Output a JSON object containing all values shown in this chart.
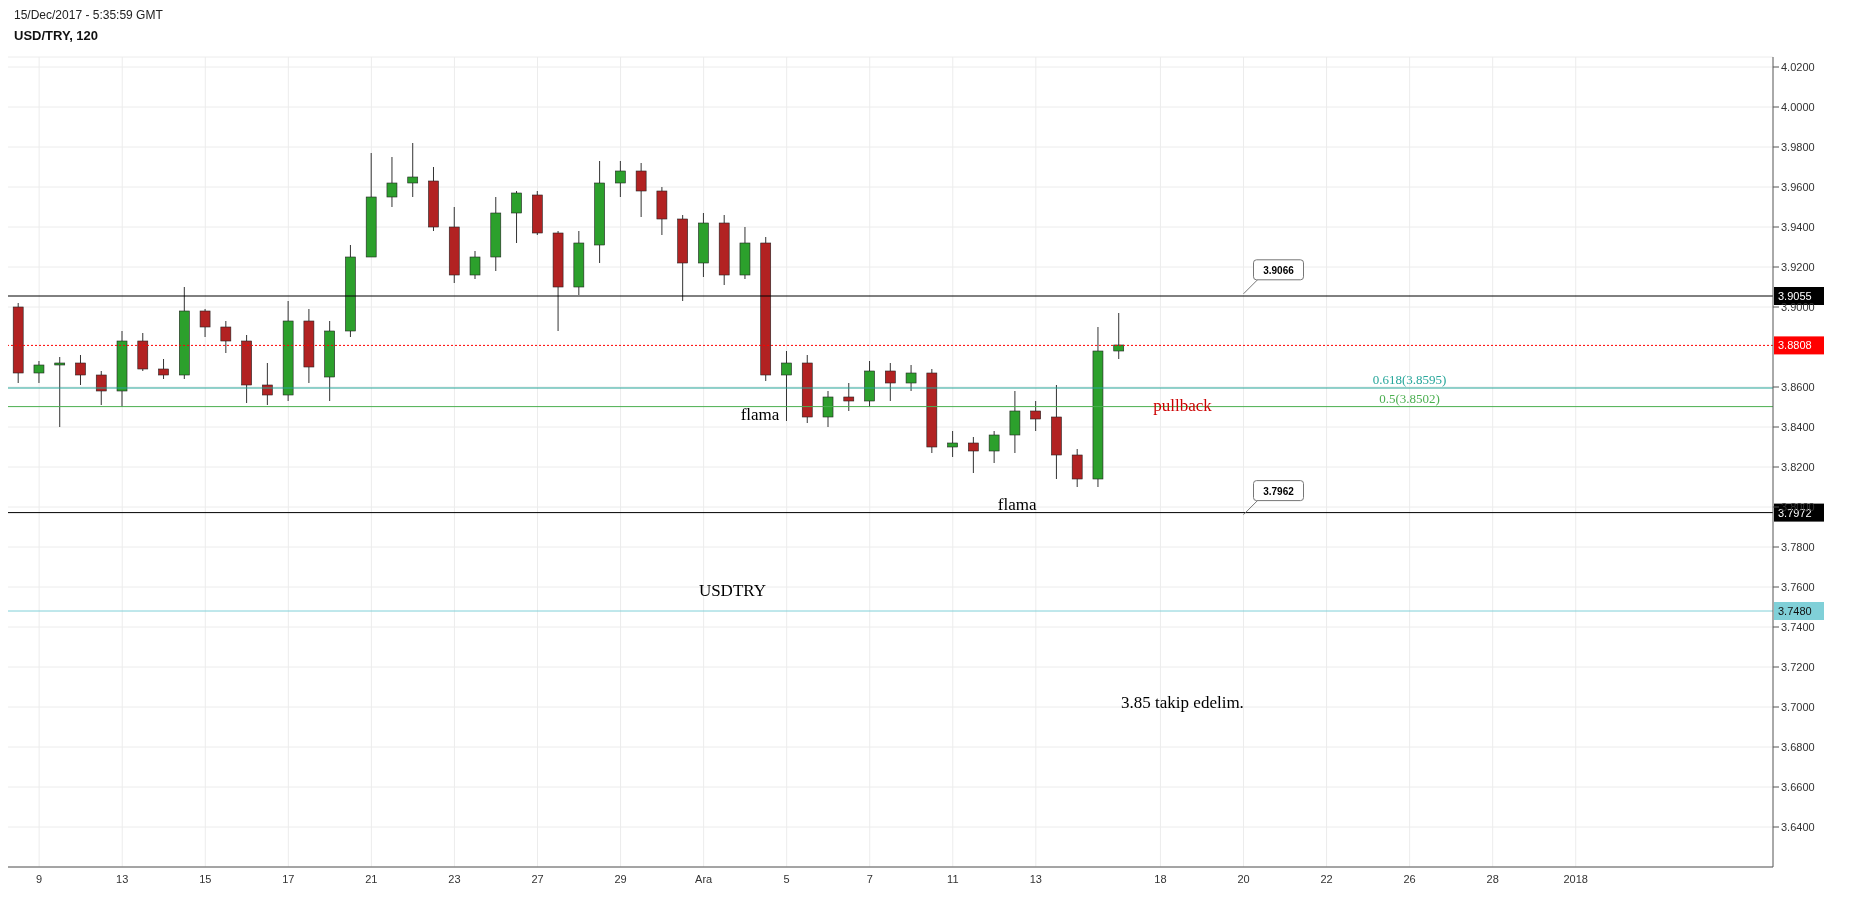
{
  "chart_data": {
    "type": "candlestick",
    "title": "USD/TRY, 120",
    "subtitle": "15/Dec/2017 - 5:35:59 GMT",
    "categories": [
      null,
      "9",
      null,
      null,
      null,
      "13",
      null,
      null,
      null,
      "15",
      null,
      null,
      null,
      "17",
      null,
      null,
      null,
      "21",
      null,
      null,
      null,
      "23",
      null,
      null,
      null,
      "27",
      null,
      null,
      null,
      "29",
      null,
      null,
      null,
      "Ara",
      null,
      null,
      null,
      "5",
      null,
      null,
      null,
      "7",
      null,
      null,
      null,
      "11",
      null,
      null,
      null,
      "13",
      null,
      null,
      null,
      null,
      null,
      "18",
      null,
      null,
      null,
      "20",
      null,
      null,
      null,
      "22",
      null,
      null,
      null,
      "26",
      null,
      null,
      null,
      "28",
      null,
      null,
      null,
      "2018",
      null,
      null,
      null,
      null,
      null,
      null,
      null,
      null,
      null
    ],
    "ohlc": [
      [
        3.9,
        3.902,
        3.862,
        3.867
      ],
      [
        3.867,
        3.873,
        3.862,
        3.871
      ],
      [
        3.871,
        3.875,
        3.84,
        3.872
      ],
      [
        3.872,
        3.876,
        3.861,
        3.866
      ],
      [
        3.866,
        3.868,
        3.851,
        3.858
      ],
      [
        3.858,
        3.888,
        3.85,
        3.883
      ],
      [
        3.883,
        3.887,
        3.868,
        3.869
      ],
      [
        3.869,
        3.874,
        3.864,
        3.866
      ],
      [
        3.866,
        3.91,
        3.864,
        3.898
      ],
      [
        3.898,
        3.899,
        3.885,
        3.89
      ],
      [
        3.89,
        3.893,
        3.877,
        3.883
      ],
      [
        3.883,
        3.886,
        3.852,
        3.861
      ],
      [
        3.861,
        3.872,
        3.851,
        3.856
      ],
      [
        3.856,
        3.903,
        3.853,
        3.893
      ],
      [
        3.893,
        3.899,
        3.862,
        3.87
      ],
      [
        3.865,
        3.893,
        3.853,
        3.888
      ],
      [
        3.888,
        3.931,
        3.885,
        3.925
      ],
      [
        3.925,
        3.977,
        3.925,
        3.955
      ],
      [
        3.955,
        3.975,
        3.95,
        3.962
      ],
      [
        3.962,
        3.982,
        3.955,
        3.965
      ],
      [
        3.963,
        3.97,
        3.938,
        3.94
      ],
      [
        3.94,
        3.95,
        3.912,
        3.916
      ],
      [
        3.916,
        3.928,
        3.914,
        3.925
      ],
      [
        3.925,
        3.955,
        3.918,
        3.947
      ],
      [
        3.947,
        3.958,
        3.932,
        3.957
      ],
      [
        3.956,
        3.958,
        3.936,
        3.937
      ],
      [
        3.937,
        3.938,
        3.888,
        3.91
      ],
      [
        3.91,
        3.938,
        3.906,
        3.932
      ],
      [
        3.931,
        3.973,
        3.922,
        3.962
      ],
      [
        3.962,
        3.973,
        3.955,
        3.968
      ],
      [
        3.968,
        3.972,
        3.945,
        3.958
      ],
      [
        3.958,
        3.96,
        3.936,
        3.944
      ],
      [
        3.944,
        3.946,
        3.903,
        3.922
      ],
      [
        3.922,
        3.947,
        3.915,
        3.942
      ],
      [
        3.942,
        3.946,
        3.911,
        3.916
      ],
      [
        3.916,
        3.94,
        3.914,
        3.932
      ],
      [
        3.932,
        3.935,
        3.863,
        3.866
      ],
      [
        3.866,
        3.878,
        3.843,
        3.872
      ],
      [
        3.872,
        3.876,
        3.842,
        3.845
      ],
      [
        3.845,
        3.858,
        3.84,
        3.855
      ],
      [
        3.855,
        3.862,
        3.848,
        3.853
      ],
      [
        3.853,
        3.873,
        3.85,
        3.868
      ],
      [
        3.868,
        3.872,
        3.853,
        3.862
      ],
      [
        3.862,
        3.871,
        3.858,
        3.867
      ],
      [
        3.867,
        3.869,
        3.827,
        3.83
      ],
      [
        3.83,
        3.838,
        3.825,
        3.832
      ],
      [
        3.832,
        3.835,
        3.817,
        3.828
      ],
      [
        3.828,
        3.838,
        3.822,
        3.836
      ],
      [
        3.836,
        3.858,
        3.827,
        3.848
      ],
      [
        3.848,
        3.853,
        3.838,
        3.844
      ],
      [
        3.845,
        3.861,
        3.814,
        3.826
      ],
      [
        3.826,
        3.829,
        3.81,
        3.814
      ],
      [
        3.814,
        3.89,
        3.81,
        3.878
      ],
      [
        3.878,
        3.897,
        3.874,
        3.881
      ],
      null,
      null,
      null,
      null,
      null,
      null,
      null,
      null,
      null,
      null,
      null,
      null,
      null,
      null,
      null,
      null,
      null,
      null,
      null,
      null,
      null,
      null,
      null,
      null,
      null,
      null,
      null,
      null,
      null,
      null,
      null
    ],
    "colors": [
      "#b22222",
      "#2ca02c",
      "#2ca02c",
      "#b22222",
      "#b22222",
      "#2ca02c",
      "#b22222",
      "#b22222",
      "#2ca02c",
      "#b22222",
      "#b22222",
      "#b22222",
      "#b22222",
      "#2ca02c",
      "#b22222",
      "#2ca02c",
      "#2ca02c",
      "#2ca02c",
      "#2ca02c",
      "#2ca02c",
      "#b22222",
      "#b22222",
      "#2ca02c",
      "#2ca02c",
      "#2ca02c",
      "#b22222",
      "#b22222",
      "#2ca02c",
      "#2ca02c",
      "#2ca02c",
      "#b22222",
      "#b22222",
      "#b22222",
      "#2ca02c",
      "#b22222",
      "#2ca02c",
      "#b22222",
      "#2ca02c",
      "#b22222",
      "#2ca02c",
      "#b22222",
      "#2ca02c",
      "#b22222",
      "#2ca02c",
      "#b22222",
      "#2ca02c",
      "#b22222",
      "#2ca02c",
      "#2ca02c",
      "#b22222",
      "#b22222",
      "#b22222",
      "#2ca02c",
      "#2ca02c",
      null,
      null,
      null,
      null,
      null,
      null,
      null,
      null,
      null,
      null,
      null,
      null,
      null,
      null,
      null,
      null,
      null,
      null,
      null,
      null,
      null,
      null,
      null,
      null,
      null,
      null,
      null,
      null,
      null,
      null,
      null
    ],
    "ylim": [
      3.62,
      4.025
    ],
    "yticks": [
      {
        "value": 3.64,
        "label": "3.6400"
      },
      {
        "value": 3.66,
        "label": "3.6600"
      },
      {
        "value": 3.68,
        "label": "3.6800"
      },
      {
        "value": 3.7,
        "label": "3.7000"
      },
      {
        "value": 3.72,
        "label": "3.7200"
      },
      {
        "value": 3.74,
        "label": "3.7400"
      },
      {
        "value": 3.76,
        "label": "3.7600"
      },
      {
        "value": 3.78,
        "label": "3.7800"
      },
      {
        "value": 3.8,
        "label": "3.8000"
      },
      {
        "value": 3.82,
        "label": "3.8200"
      },
      {
        "value": 3.84,
        "label": "3.8400"
      },
      {
        "value": 3.86,
        "label": "3.8600"
      },
      {
        "value": 3.9,
        "label": "3.9000"
      },
      {
        "value": 3.92,
        "label": "3.9200"
      },
      {
        "value": 3.94,
        "label": "3.9400"
      },
      {
        "value": 3.96,
        "label": "3.9600"
      },
      {
        "value": 3.98,
        "label": "3.9800"
      },
      {
        "value": 4.0,
        "label": "4.0000"
      },
      {
        "value": 4.02,
        "label": "4.0200"
      }
    ],
    "grid": true,
    "ref_lines": [
      {
        "axis": "y",
        "value": 3.9055,
        "label": "3.9055",
        "color": "#000000"
      },
      {
        "axis": "y",
        "value": 3.8808,
        "label": "3.8808",
        "color": "#ff0000",
        "line_style": "dotted"
      },
      {
        "axis": "y",
        "value": 3.7972,
        "label": "3.7972",
        "color": "#000000"
      },
      {
        "axis": "y",
        "value": 3.748,
        "label": "3.7480",
        "color": "#80d0d8"
      },
      {
        "axis": "y",
        "value": 3.8595,
        "color": "#26a69a"
      },
      {
        "axis": "y",
        "value": 3.8502,
        "color": "#4caf50"
      }
    ],
    "annotations": [
      {
        "text": "3.9066",
        "x": "20",
        "y": 3.9066
      },
      {
        "text": "3.7962",
        "x": "20",
        "y": 3.7962
      },
      {
        "text": "0.618(3.8595)",
        "x": "26",
        "y": 3.8595
      },
      {
        "text": "0.5(3.8502)",
        "x": "26",
        "y": 3.8502
      },
      "flama",
      "flama",
      "pullback",
      "USDTRY",
      "3.85 takip edelim."
    ]
  }
}
